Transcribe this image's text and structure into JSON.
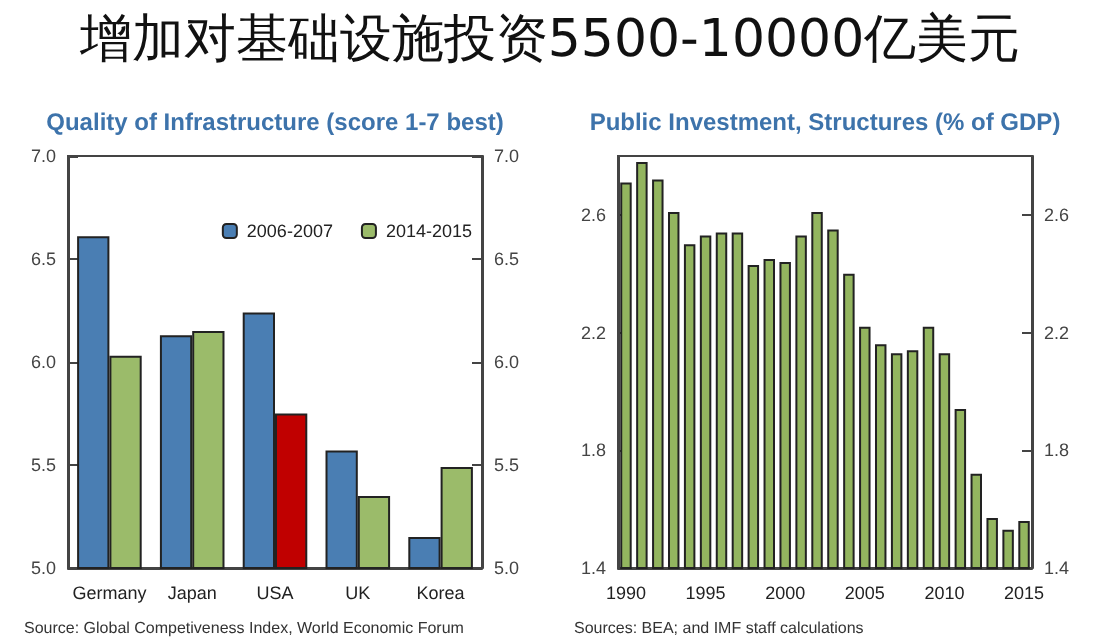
{
  "chart_data": [
    {
      "type": "other",
      "title": "增加对基础设施投资5500-10000亿美元"
    },
    {
      "type": "bar",
      "title": "Quality of Infrastructure (score 1-7 best)",
      "categories": [
        "Germany",
        "Japan",
        "USA",
        "UK",
        "Korea"
      ],
      "series": [
        {
          "name": "2006-2007",
          "color": "#4a7eb3",
          "values": [
            6.61,
            6.13,
            6.24,
            5.57,
            5.15
          ]
        },
        {
          "name": "2014-2015",
          "color": "#9bbb6a",
          "colors": [
            "#9bbb6a",
            "#9bbb6a",
            "#c00000",
            "#9bbb6a",
            "#9bbb6a"
          ],
          "values": [
            6.03,
            6.15,
            5.75,
            5.35,
            5.49
          ]
        }
      ],
      "ylim": [
        5,
        7
      ],
      "yticks": [
        {
          "value": 5,
          "label": "5.0"
        },
        {
          "value": 5.5,
          "label": "5.5"
        },
        {
          "value": 6,
          "label": "6.0"
        },
        {
          "value": 6.5,
          "label": "6.5"
        },
        {
          "value": 7,
          "label": "7.0"
        }
      ],
      "y2lim": [
        5,
        7
      ],
      "y2ticks": [
        {
          "value": 5,
          "label": "5.0"
        },
        {
          "value": 5.5,
          "label": "5.5"
        },
        {
          "value": 6,
          "label": "6.0"
        },
        {
          "value": 6.5,
          "label": "6.5"
        },
        {
          "value": 7,
          "label": "7.0"
        }
      ],
      "legend": "top right",
      "annotations": [
        "Source: Global Competiveness Index, World Economic Forum"
      ]
    },
    {
      "type": "bar",
      "title": "Public Investment, Structures (% of GDP)",
      "color": "#93b55f",
      "x": [
        1990,
        1991,
        1992,
        1993,
        1994,
        1995,
        1996,
        1997,
        1998,
        1999,
        2000,
        2001,
        2002,
        2003,
        2004,
        2005,
        2006,
        2007,
        2008,
        2009,
        2010,
        2011,
        2012,
        2013,
        2014,
        2015
      ],
      "values": [
        2.71,
        2.78,
        2.72,
        2.61,
        2.5,
        2.53,
        2.54,
        2.54,
        2.43,
        2.45,
        2.44,
        2.53,
        2.61,
        2.55,
        2.4,
        2.22,
        2.16,
        2.13,
        2.14,
        2.22,
        2.13,
        1.94,
        1.72,
        1.57,
        1.53,
        1.56
      ],
      "xlim": [
        1989.5,
        2015.5
      ],
      "xticks": [
        1990,
        1995,
        2000,
        2005,
        2010,
        2015
      ],
      "ylim": [
        1.4,
        2.8
      ],
      "yticks": [
        1.4,
        1.8,
        2.2,
        2.6
      ],
      "y2lim": [
        1.4,
        2.8
      ],
      "y2ticks": [
        1.4,
        1.8,
        2.2,
        2.6
      ],
      "annotations": [
        "Sources: BEA; and IMF staff calculations"
      ]
    }
  ]
}
